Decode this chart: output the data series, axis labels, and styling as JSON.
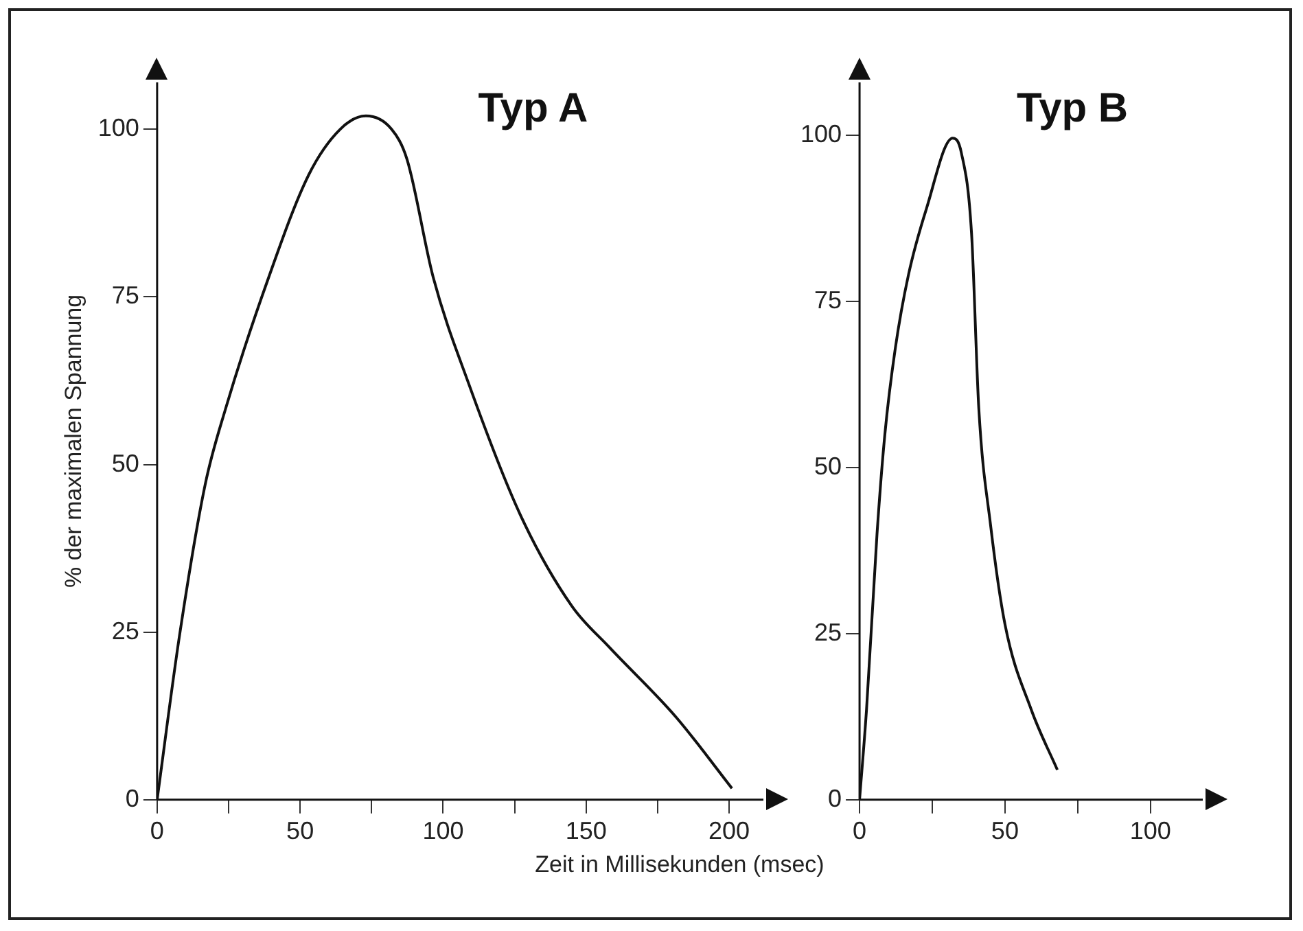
{
  "chart_data": [
    {
      "type": "line",
      "title": "Typ A",
      "xlabel": "Zeit in Millisekunden (msec)",
      "ylabel": "% der maximalen Spannung",
      "xlim": [
        0,
        212
      ],
      "ylim": [
        0,
        107
      ],
      "xticks": [
        0,
        {
          "value": 25,
          "label": null
        },
        50,
        {
          "value": 75,
          "label": null
        },
        100,
        {
          "value": 125,
          "label": null
        },
        150,
        {
          "value": 175,
          "label": null
        },
        200
      ],
      "yticks": [
        0,
        25,
        50,
        75,
        100
      ],
      "grid": false,
      "legend": false,
      "marker": "none",
      "line_style": "solid",
      "series": [
        {
          "color": "#111111",
          "x": [
            0,
            7.8,
            16.8,
            24,
            38.5,
            53,
            64,
            73,
            82,
            87.4,
            96.5,
            109,
            127,
            145,
            158,
            181.5,
            201
          ],
          "values": [
            0,
            24.4,
            47,
            58.4,
            77.3,
            93.2,
            100,
            102,
            100,
            95.5,
            78,
            62,
            42.5,
            28.9,
            22.8,
            12.3,
            1.7
          ]
        }
      ]
    },
    {
      "type": "line",
      "title": "Typ B",
      "xlim": [
        0,
        118
      ],
      "ylim": [
        0,
        108
      ],
      "xticks": [
        0,
        {
          "value": 25,
          "label": null
        },
        50,
        {
          "value": 75,
          "label": null
        },
        100
      ],
      "yticks": [
        0,
        25,
        50,
        75,
        100
      ],
      "grid": false,
      "legend": false,
      "marker": "none",
      "line_style": "solid",
      "series": [
        {
          "color": "#111111",
          "x": [
            0,
            2.4,
            6,
            8.7,
            12.3,
            16.8,
            23,
            32,
            35,
            38.5,
            41,
            45,
            50,
            59,
            68
          ],
          "values": [
            0,
            13.6,
            40,
            55,
            68,
            79,
            89,
            99.6,
            97.4,
            85.3,
            58.9,
            41.5,
            26.4,
            13.6,
            4.5
          ]
        }
      ]
    }
  ]
}
